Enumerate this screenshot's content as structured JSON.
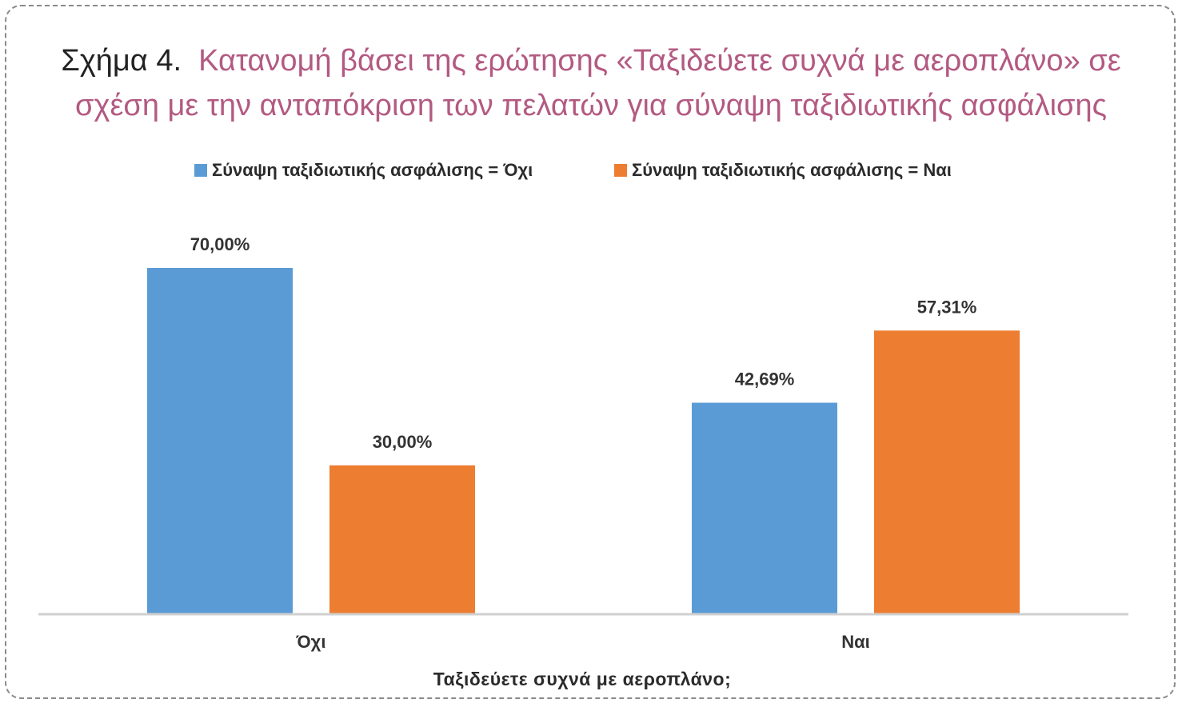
{
  "figure": {
    "label": "Σχήμα 4.",
    "title_line1": "Κατανομή βάσει της ερώτησης «Ταξιδεύετε συχνά με αεροπλάνο» σε",
    "title_line2": "σχέση με την ανταπόκριση των πελατών για σύναψη ταξιδιωτικής ασφάλισης"
  },
  "colors": {
    "series_no": "#5b9bd5",
    "series_yes": "#ed7d31",
    "axis": "#d0d0d0"
  },
  "chart_data": {
    "type": "bar",
    "categories": [
      "Όχι",
      "Ναι"
    ],
    "series": [
      {
        "name": "Σύναψη ταξιδιωτικής  ασφάλισης = Όχι",
        "values": [
          70.0,
          42.69
        ],
        "labels": [
          "70,00%",
          "42,69%"
        ]
      },
      {
        "name": "Σύναψη ταξιδιωτικής  ασφάλισης = Ναι",
        "values": [
          30.0,
          57.31
        ],
        "labels": [
          "30,00%",
          "57,31%"
        ]
      }
    ],
    "xlabel": "Ταξιδεύετε συχνά με αεροπλάνο;",
    "ylabel": "",
    "ylim": [
      0,
      70
    ],
    "legend": "top-center",
    "grid": false
  }
}
